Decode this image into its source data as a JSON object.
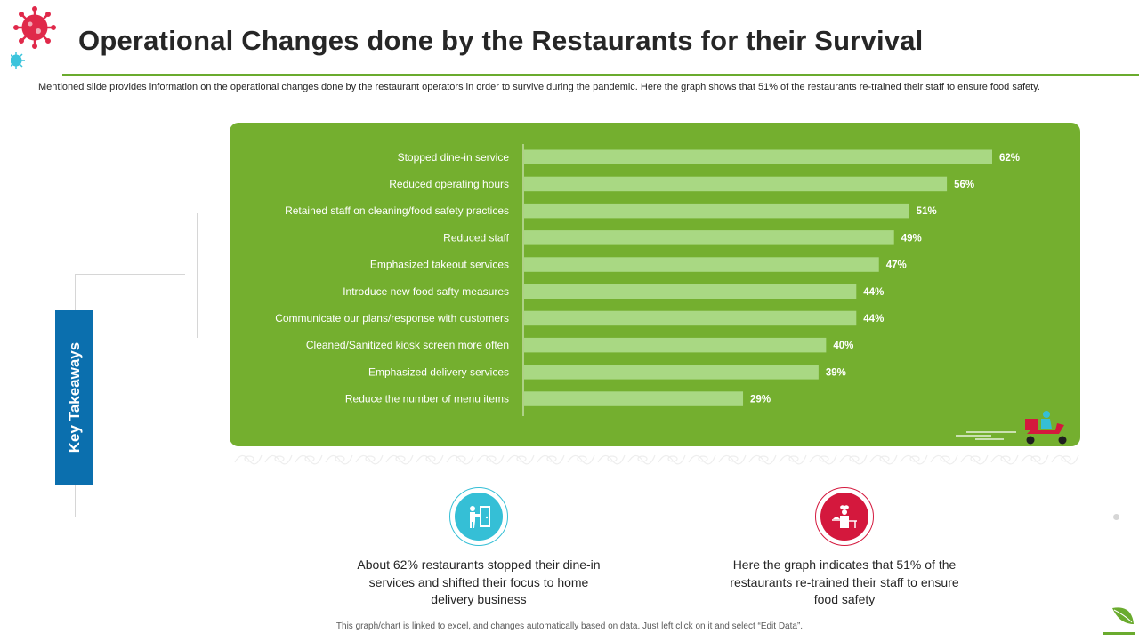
{
  "header": {
    "title": "Operational Changes done by the Restaurants for their Survival",
    "intro": "Mentioned slide provides information on the operational changes done by the restaurant operators in order to survive during the pandemic. Here the graph shows that 51% of the restaurants re-trained their staff to ensure food safety."
  },
  "chart_data": {
    "type": "bar",
    "orientation": "horizontal",
    "categories": [
      "Stopped dine-in service",
      "Reduced operating hours",
      "Retained staff on cleaning/food safety practices",
      "Reduced staff",
      "Emphasized takeout services",
      "Introduce new food safty measures",
      "Communicate our plans/response with customers",
      "Cleaned/Sanitized kiosk screen more often",
      "Emphasized delivery services",
      "Reduce the number of menu items"
    ],
    "values": [
      62,
      56,
      51,
      49,
      47,
      44,
      44,
      40,
      39,
      29
    ],
    "value_labels": [
      "62%",
      "56%",
      "51%",
      "49%",
      "47%",
      "44%",
      "44%",
      "40%",
      "39%",
      "29%"
    ],
    "unit": "%",
    "xlim": [
      0,
      70
    ],
    "grid": false,
    "legend": "none",
    "bar_color": "#a9d883",
    "panel_color": "#74af2f"
  },
  "takeaways": {
    "label": "Key Takeaways",
    "tab_color": "#0b6fae",
    "items": [
      {
        "icon": "delivery-person-door-icon",
        "color": "#35bfd6",
        "text": "About 62% restaurants stopped their dine-in services and shifted their focus to home delivery business"
      },
      {
        "icon": "chef-serving-icon",
        "color": "#d4183d",
        "text": "Here the graph indicates that 51% of the restaurants re-trained their staff to ensure food safety"
      }
    ]
  },
  "footnote": "This graph/chart is linked to excel, and changes automatically based on data. Just left click on it and select “Edit Data”.",
  "colors": {
    "accent": "#6aab2e",
    "virus": "#e0294a",
    "virus_small": "#3cc4dc"
  }
}
